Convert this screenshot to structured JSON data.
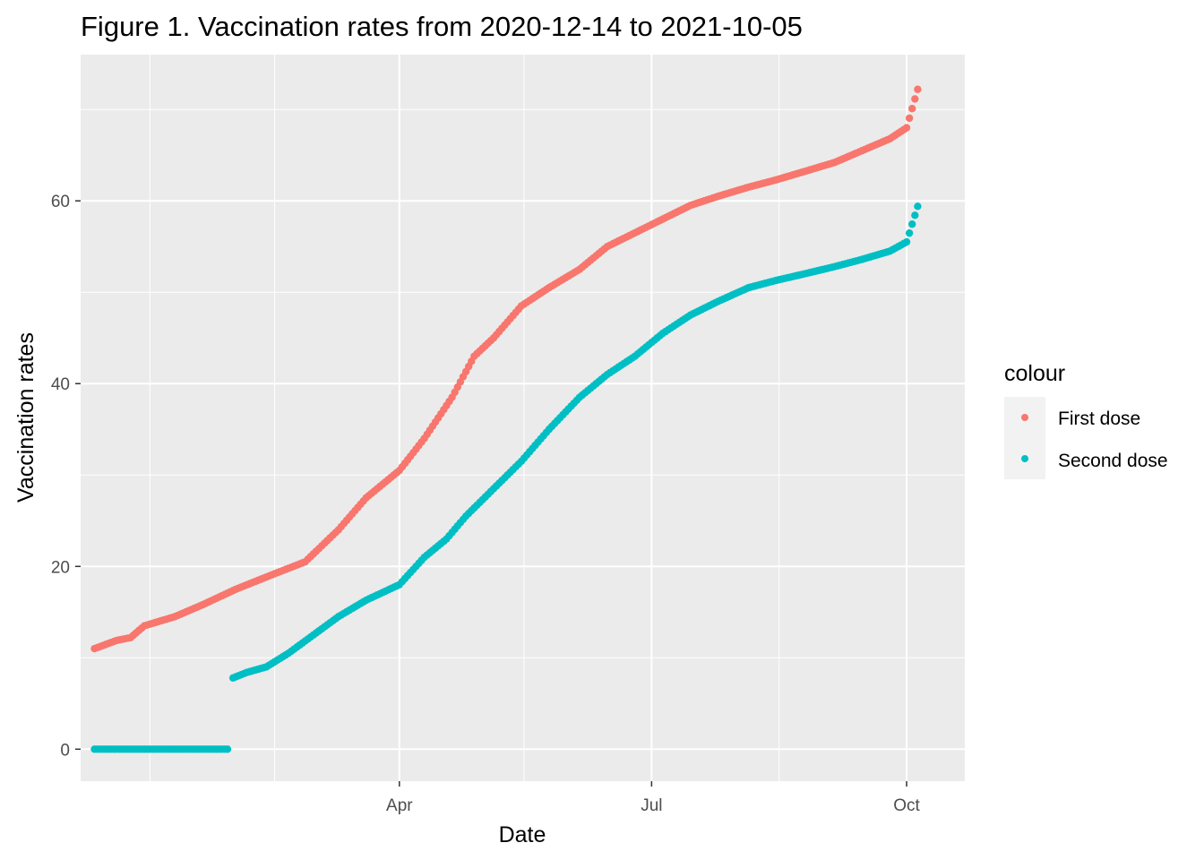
{
  "chart_data": {
    "type": "scatter",
    "title": "Figure 1. Vaccination rates from 2020-12-14 to 2021-10-05",
    "xlabel": "Date",
    "ylabel": "Vaccination rates",
    "xlim": [
      "2020-12-07",
      "2021-10-22"
    ],
    "ylim": [
      -3.5,
      76
    ],
    "x_ticks": [
      {
        "date": "2021-04-01",
        "label": "Apr"
      },
      {
        "date": "2021-07-01",
        "label": "Jul"
      },
      {
        "date": "2021-10-01",
        "label": "Oct"
      }
    ],
    "x_minor_breaks": [
      "2021-01-01",
      "2021-02-15",
      "2021-05-16",
      "2021-08-16"
    ],
    "y_ticks": [
      0,
      20,
      40,
      60
    ],
    "y_minor_breaks": [
      10,
      30,
      50,
      70
    ],
    "grid": true,
    "legend": {
      "title": "colour",
      "position": "right",
      "entries": [
        "First dose",
        "Second dose"
      ]
    },
    "series": [
      {
        "name": "First dose",
        "color": "#F8766D",
        "points": [
          [
            "2020-12-12",
            11.0
          ],
          [
            "2020-12-20",
            11.9
          ],
          [
            "2020-12-25",
            12.2
          ],
          [
            "2020-12-30",
            13.5
          ],
          [
            "2021-01-10",
            14.5
          ],
          [
            "2021-01-20",
            15.8
          ],
          [
            "2021-02-01",
            17.5
          ],
          [
            "2021-02-15",
            19.2
          ],
          [
            "2021-02-26",
            20.5
          ],
          [
            "2021-03-10",
            24.0
          ],
          [
            "2021-03-20",
            27.5
          ],
          [
            "2021-04-01",
            30.5
          ],
          [
            "2021-04-10",
            34.0
          ],
          [
            "2021-04-20",
            38.5
          ],
          [
            "2021-04-28",
            43.0
          ],
          [
            "2021-05-05",
            45.0
          ],
          [
            "2021-05-15",
            48.5
          ],
          [
            "2021-05-25",
            50.5
          ],
          [
            "2021-06-05",
            52.5
          ],
          [
            "2021-06-15",
            55.0
          ],
          [
            "2021-06-25",
            56.5
          ],
          [
            "2021-07-05",
            58.0
          ],
          [
            "2021-07-15",
            59.5
          ],
          [
            "2021-07-25",
            60.5
          ],
          [
            "2021-08-05",
            61.5
          ],
          [
            "2021-08-15",
            62.3
          ],
          [
            "2021-08-25",
            63.2
          ],
          [
            "2021-09-05",
            64.2
          ],
          [
            "2021-09-15",
            65.5
          ],
          [
            "2021-09-25",
            66.8
          ],
          [
            "2021-10-01",
            68.0
          ],
          [
            "2021-10-05",
            72.2
          ]
        ]
      },
      {
        "name": "Second dose",
        "color": "#00BFC4",
        "points": [
          [
            "2020-12-12",
            0.0
          ],
          [
            "2020-12-20",
            0.0
          ],
          [
            "2021-01-01",
            0.0
          ],
          [
            "2021-01-15",
            0.0
          ],
          [
            "2021-01-30",
            0.0
          ],
          [
            "2021-01-31",
            7.8
          ],
          [
            "2021-02-05",
            8.4
          ],
          [
            "2021-02-12",
            9.0
          ],
          [
            "2021-02-20",
            10.5
          ],
          [
            "2021-03-01",
            12.5
          ],
          [
            "2021-03-10",
            14.5
          ],
          [
            "2021-03-20",
            16.3
          ],
          [
            "2021-04-01",
            18.0
          ],
          [
            "2021-04-10",
            21.0
          ],
          [
            "2021-04-18",
            23.0
          ],
          [
            "2021-04-25",
            25.5
          ],
          [
            "2021-05-05",
            28.5
          ],
          [
            "2021-05-15",
            31.5
          ],
          [
            "2021-05-25",
            35.0
          ],
          [
            "2021-06-05",
            38.5
          ],
          [
            "2021-06-15",
            41.0
          ],
          [
            "2021-06-25",
            43.0
          ],
          [
            "2021-07-05",
            45.5
          ],
          [
            "2021-07-15",
            47.5
          ],
          [
            "2021-07-25",
            49.0
          ],
          [
            "2021-08-05",
            50.5
          ],
          [
            "2021-08-15",
            51.3
          ],
          [
            "2021-08-25",
            52.0
          ],
          [
            "2021-09-05",
            52.8
          ],
          [
            "2021-09-15",
            53.6
          ],
          [
            "2021-09-25",
            54.5
          ],
          [
            "2021-10-01",
            55.5
          ],
          [
            "2021-10-05",
            59.4
          ]
        ]
      }
    ]
  }
}
